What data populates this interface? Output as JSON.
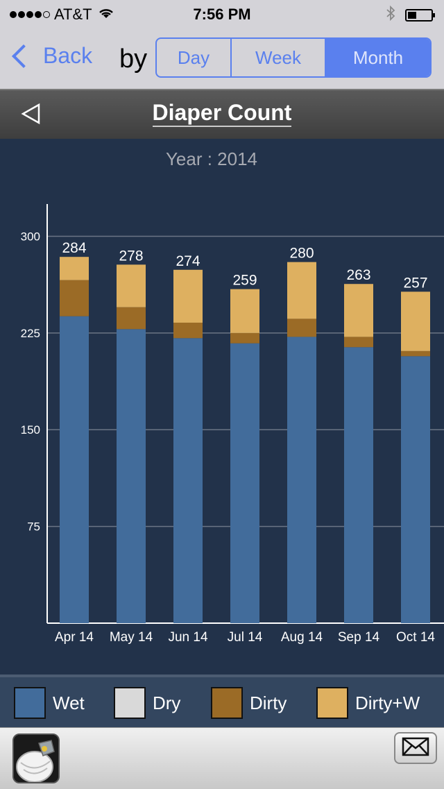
{
  "status": {
    "carrier": "AT&T",
    "time": "7:56 PM"
  },
  "nav": {
    "back_label": "Back",
    "by_label": "by",
    "segments": [
      {
        "label": "Day",
        "active": false
      },
      {
        "label": "Week",
        "active": false
      },
      {
        "label": "Month",
        "active": true
      }
    ]
  },
  "title": "Diaper Count",
  "subtitle": "Year : 2014",
  "legend": [
    {
      "label": "Wet",
      "color": "#426c9b"
    },
    {
      "label": "Dry",
      "color": "#d9d9d9"
    },
    {
      "label": "Dirty",
      "color": "#9b6b26"
    },
    {
      "label": "Dirty+W",
      "color": "#deb060"
    }
  ],
  "chart_data": {
    "type": "bar",
    "stacked": true,
    "categories": [
      "Apr 14",
      "May 14",
      "Jun 14",
      "Jul 14",
      "Aug 14",
      "Sep 14",
      "Oct 14"
    ],
    "yticks": [
      75,
      150,
      225,
      300
    ],
    "ylim": [
      0,
      325
    ],
    "grid": true,
    "series": [
      {
        "name": "Wet",
        "color": "#426c9b",
        "values": [
          238,
          228,
          221,
          217,
          222,
          214,
          207
        ]
      },
      {
        "name": "Dry",
        "color": "#d9d9d9",
        "values": [
          0,
          0,
          0,
          0,
          0,
          0,
          0
        ]
      },
      {
        "name": "Dirty",
        "color": "#9b6b26",
        "values": [
          28,
          17,
          12,
          8,
          14,
          8,
          4
        ]
      },
      {
        "name": "Dirty+W",
        "color": "#deb060",
        "values": [
          18,
          33,
          41,
          34,
          44,
          41,
          46
        ]
      }
    ],
    "totals": [
      284,
      278,
      274,
      259,
      280,
      263,
      257
    ]
  }
}
